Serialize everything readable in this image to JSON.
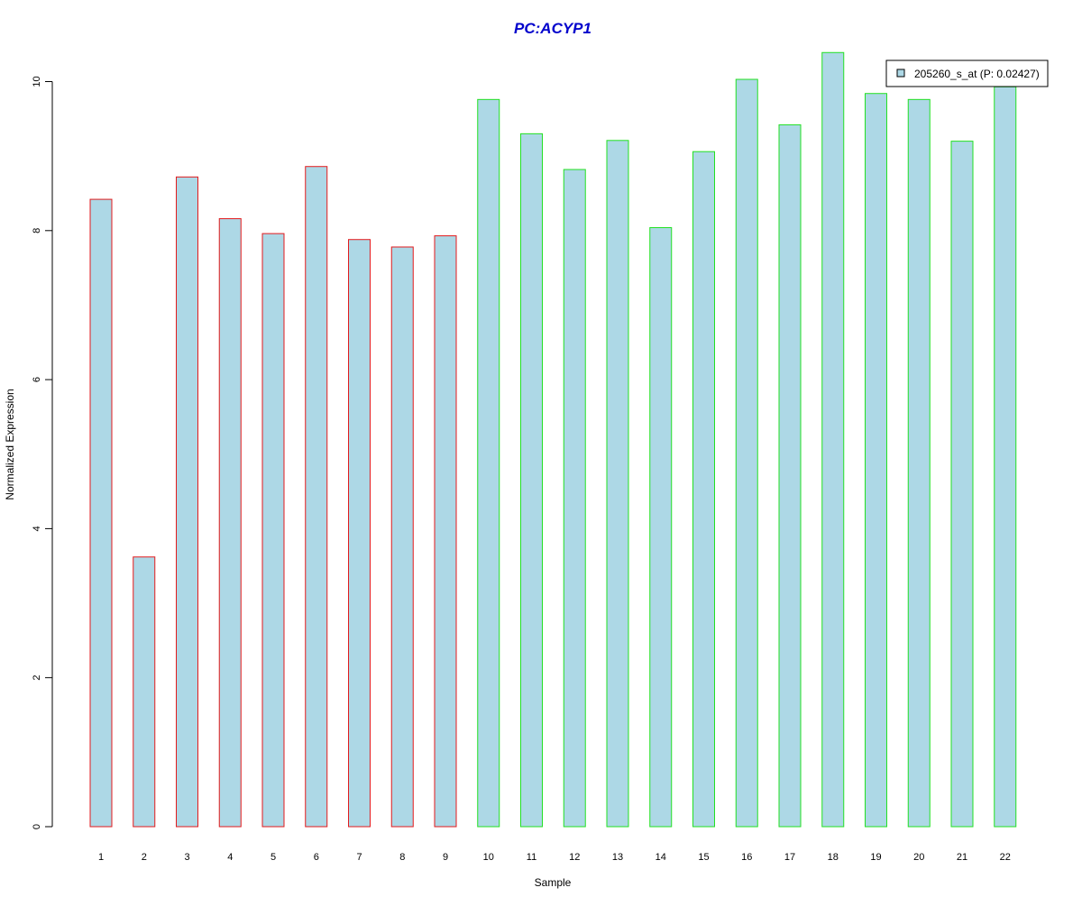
{
  "chart_data": {
    "type": "bar",
    "title": "PC:ACYP1",
    "xlabel": "Sample",
    "ylabel": "Normalized Expression",
    "categories": [
      "1",
      "2",
      "3",
      "4",
      "5",
      "6",
      "7",
      "8",
      "9",
      "10",
      "11",
      "12",
      "13",
      "14",
      "15",
      "16",
      "17",
      "18",
      "19",
      "20",
      "21",
      "22"
    ],
    "series": [
      {
        "name": "205260_s_at (P: 0.02427)",
        "values": [
          8.42,
          3.62,
          8.72,
          8.16,
          7.96,
          8.86,
          7.88,
          7.78,
          7.93,
          9.76,
          9.3,
          8.82,
          9.21,
          8.04,
          9.06,
          10.03,
          9.42,
          10.39,
          9.84,
          9.76,
          9.2,
          9.93
        ]
      }
    ],
    "group_border_colors": [
      "#e31a1c",
      "#e31a1c",
      "#e31a1c",
      "#e31a1c",
      "#e31a1c",
      "#e31a1c",
      "#e31a1c",
      "#e31a1c",
      "#e31a1c",
      "#22e022",
      "#22e022",
      "#22e022",
      "#22e022",
      "#22e022",
      "#22e022",
      "#22e022",
      "#22e022",
      "#22e022",
      "#22e022",
      "#22e022",
      "#22e022",
      "#22e022"
    ],
    "bar_fill_color": "#add8e6",
    "title_color": "#0000cc",
    "yticks": [
      0,
      2,
      4,
      6,
      8,
      10
    ],
    "ylim": [
      0,
      10.4
    ],
    "grid": false,
    "legend_position": "top-right"
  }
}
